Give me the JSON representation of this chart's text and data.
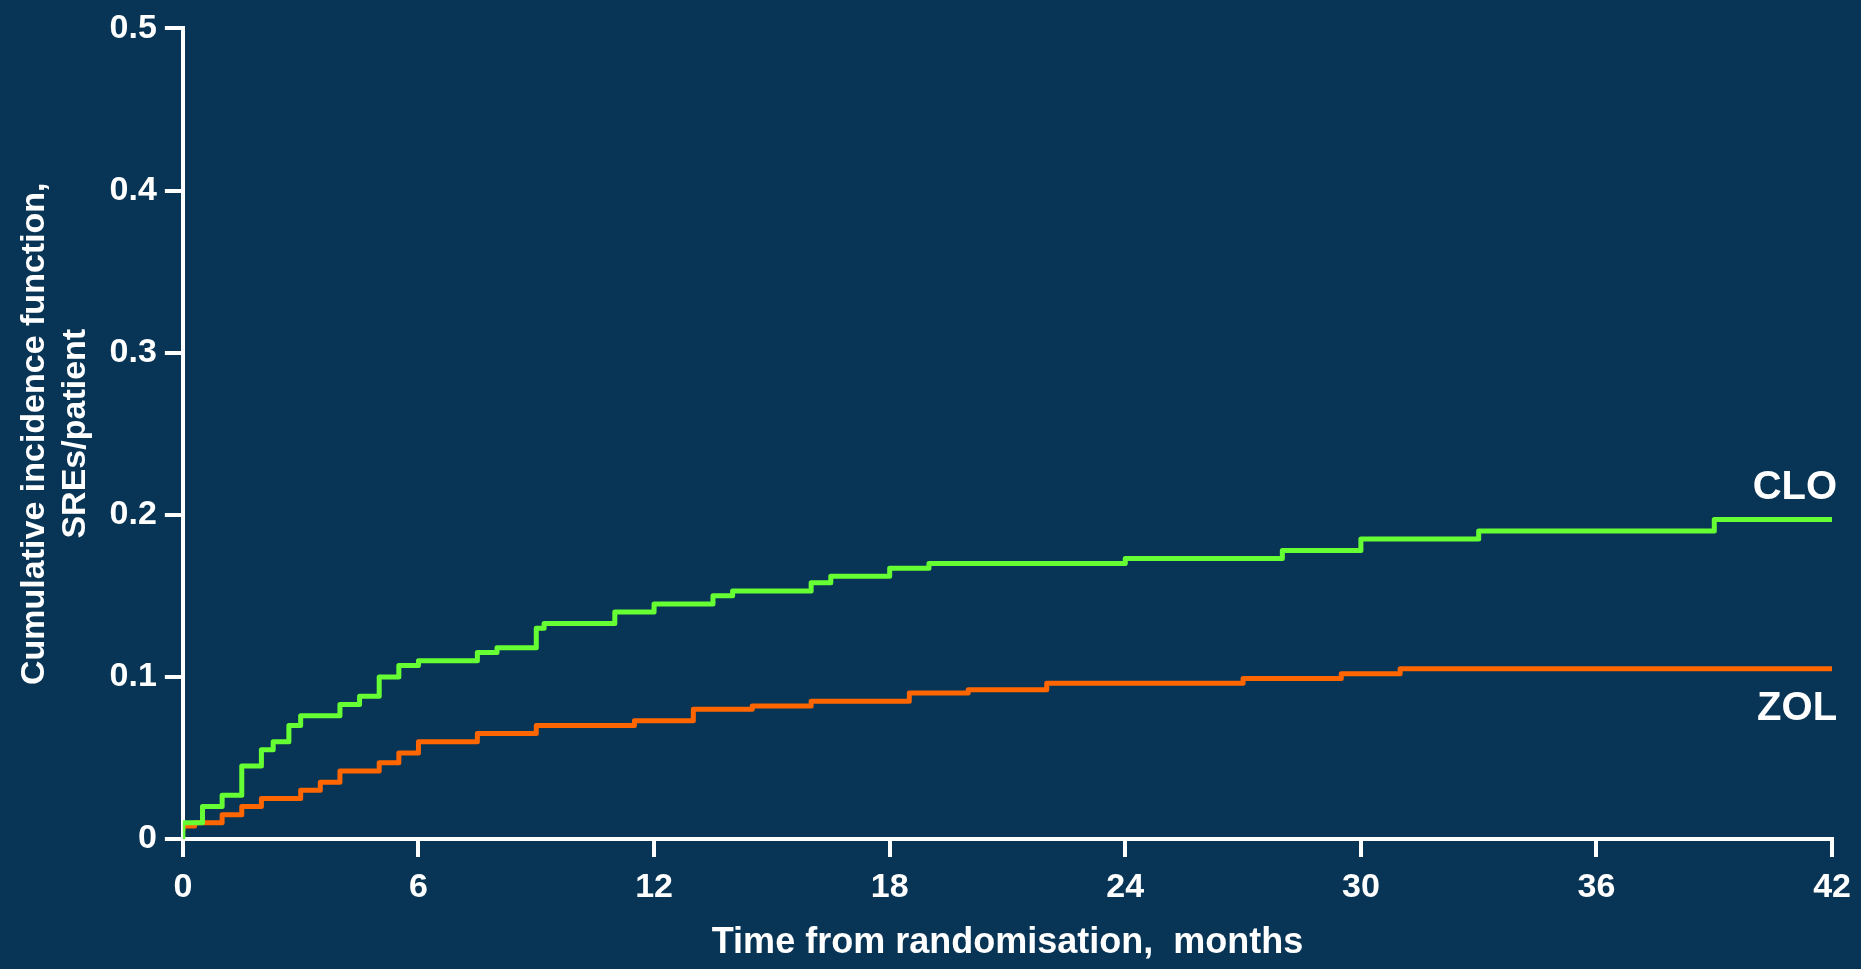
{
  "chart_data": {
    "type": "step",
    "xlabel": "Time from randomisation,  months",
    "ylabel": "Cumulative incidence function,\nSREs/patient",
    "xlim": [
      0,
      42
    ],
    "xticks": [
      0,
      6,
      12,
      18,
      24,
      30,
      36,
      42
    ],
    "ylim": [
      0,
      0.5
    ],
    "yticks": [
      0,
      0.1,
      0.2,
      0.3,
      0.4,
      0.5
    ],
    "grid": false,
    "legend": false,
    "marker": "none",
    "line_style": "solid",
    "series": [
      {
        "name": "CLO",
        "color": "#66ff33",
        "x": [
          0,
          0.5,
          1,
          1.5,
          2,
          2.3,
          2.7,
          3,
          4,
          4.5,
          5,
          5.5,
          6,
          7.5,
          8,
          9,
          9.2,
          11,
          12,
          13.5,
          14,
          16,
          16.5,
          18,
          19,
          24,
          28,
          30,
          33,
          39,
          41.9,
          42
        ],
        "values": [
          0,
          0.01,
          0.02,
          0.027,
          0.045,
          0.055,
          0.06,
          0.07,
          0.076,
          0.083,
          0.088,
          0.1,
          0.107,
          0.11,
          0.115,
          0.118,
          0.13,
          0.133,
          0.14,
          0.145,
          0.15,
          0.153,
          0.158,
          0.162,
          0.167,
          0.17,
          0.173,
          0.178,
          0.185,
          0.19,
          0.197,
          0.197
        ]
      },
      {
        "name": "ZOL",
        "color": "#ff6600",
        "x": [
          0,
          0.3,
          1,
          1.5,
          2,
          3,
          3.5,
          4,
          5,
          5.5,
          6,
          7.5,
          9,
          11.5,
          13,
          14.5,
          16,
          18.5,
          20,
          22,
          27,
          29.5,
          31,
          35,
          42
        ],
        "values": [
          0.005,
          0.008,
          0.01,
          0.015,
          0.02,
          0.025,
          0.03,
          0.035,
          0.042,
          0.047,
          0.053,
          0.06,
          0.065,
          0.07,
          0.073,
          0.08,
          0.082,
          0.085,
          0.09,
          0.092,
          0.096,
          0.099,
          0.102,
          0.105,
          0.105
        ]
      }
    ]
  }
}
